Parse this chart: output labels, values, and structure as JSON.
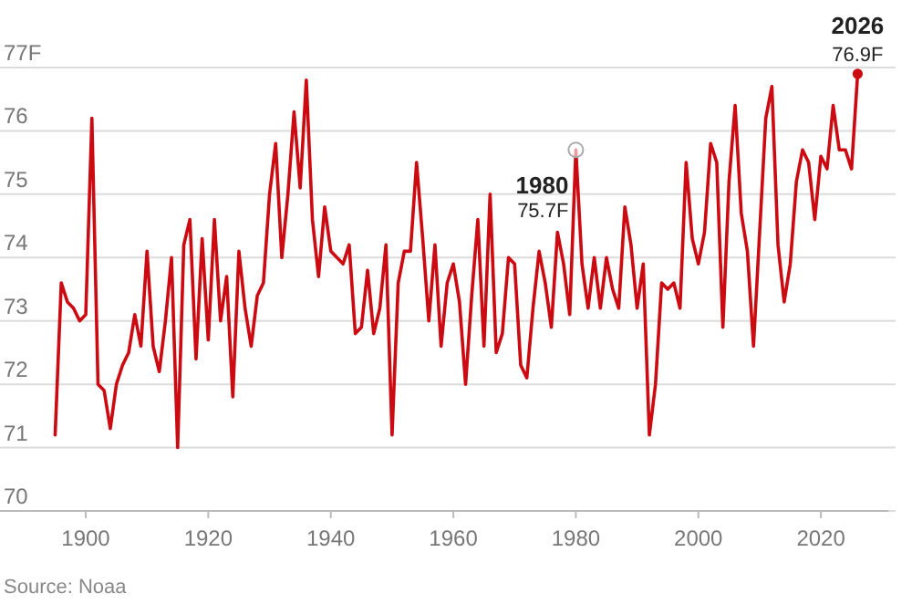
{
  "chart_data": {
    "type": "line",
    "x": [
      1895,
      1896,
      1897,
      1898,
      1899,
      1900,
      1901,
      1902,
      1903,
      1904,
      1905,
      1906,
      1907,
      1908,
      1909,
      1910,
      1911,
      1912,
      1913,
      1914,
      1915,
      1916,
      1917,
      1918,
      1919,
      1920,
      1921,
      1922,
      1923,
      1924,
      1925,
      1926,
      1927,
      1928,
      1929,
      1930,
      1931,
      1932,
      1933,
      1934,
      1935,
      1936,
      1937,
      1938,
      1939,
      1940,
      1941,
      1942,
      1943,
      1944,
      1945,
      1946,
      1947,
      1948,
      1949,
      1950,
      1951,
      1952,
      1953,
      1954,
      1955,
      1956,
      1957,
      1958,
      1959,
      1960,
      1961,
      1962,
      1963,
      1964,
      1965,
      1966,
      1967,
      1968,
      1969,
      1970,
      1971,
      1972,
      1973,
      1974,
      1975,
      1976,
      1977,
      1978,
      1979,
      1980,
      1981,
      1982,
      1983,
      1984,
      1985,
      1986,
      1987,
      1988,
      1989,
      1990,
      1991,
      1992,
      1993,
      1994,
      1995,
      1996,
      1997,
      1998,
      1999,
      2000,
      2001,
      2002,
      2003,
      2004,
      2005,
      2006,
      2007,
      2008,
      2009,
      2010,
      2011,
      2012,
      2013,
      2014,
      2015,
      2016,
      2017,
      2018,
      2019,
      2020,
      2021,
      2022,
      2023,
      2024,
      2025,
      2026
    ],
    "series": [
      {
        "color": "#cc0a11",
        "values": [
          71.2,
          73.6,
          73.3,
          73.2,
          73.0,
          73.1,
          76.2,
          72.0,
          71.9,
          71.3,
          72.0,
          72.3,
          72.5,
          73.1,
          72.6,
          74.1,
          72.6,
          72.2,
          73.0,
          74.0,
          71.0,
          74.2,
          74.6,
          72.4,
          74.3,
          72.7,
          74.6,
          73.0,
          73.7,
          71.8,
          74.1,
          73.2,
          72.6,
          73.4,
          73.6,
          75.0,
          75.8,
          74.0,
          75.0,
          76.3,
          75.1,
          76.8,
          74.6,
          73.7,
          74.8,
          74.1,
          74.0,
          73.9,
          74.2,
          72.8,
          72.9,
          73.8,
          72.8,
          73.2,
          74.2,
          71.2,
          73.6,
          74.1,
          74.1,
          75.5,
          74.3,
          73.0,
          74.2,
          72.6,
          73.6,
          73.9,
          73.3,
          72.0,
          73.4,
          74.6,
          72.6,
          75.0,
          72.5,
          72.8,
          74.0,
          73.9,
          72.3,
          72.1,
          73.2,
          74.1,
          73.6,
          72.9,
          74.4,
          73.9,
          73.1,
          75.7,
          73.9,
          73.2,
          74.0,
          73.2,
          74.0,
          73.5,
          73.2,
          74.8,
          74.2,
          73.2,
          73.9,
          71.2,
          72.0,
          73.6,
          73.5,
          73.6,
          73.2,
          75.5,
          74.3,
          73.9,
          74.4,
          75.8,
          75.5,
          72.9,
          75.2,
          76.4,
          74.7,
          74.1,
          72.6,
          74.4,
          76.2,
          76.7,
          74.2,
          73.3,
          73.9,
          75.2,
          75.7,
          75.5,
          74.6,
          75.6,
          75.4,
          76.4,
          75.7,
          75.7,
          75.4,
          76.9
        ]
      }
    ],
    "xlim": [
      1886,
      2031
    ],
    "ylim": [
      70,
      77
    ],
    "xticks": [
      1900,
      1920,
      1940,
      1960,
      1980,
      2000,
      2020
    ],
    "yticks": [
      70,
      71,
      72,
      73,
      74,
      75,
      76,
      {
        "value": 77,
        "label": "77F"
      }
    ],
    "grid": "y",
    "marker": "none",
    "line_style": "solid",
    "annotations": [
      {
        "text": "1980\n75.7F",
        "x": 1980,
        "y": 75.7
      },
      {
        "text": "2026\n76.9F",
        "x": 2026,
        "y": 76.9
      },
      "Source: Noaa"
    ]
  }
}
